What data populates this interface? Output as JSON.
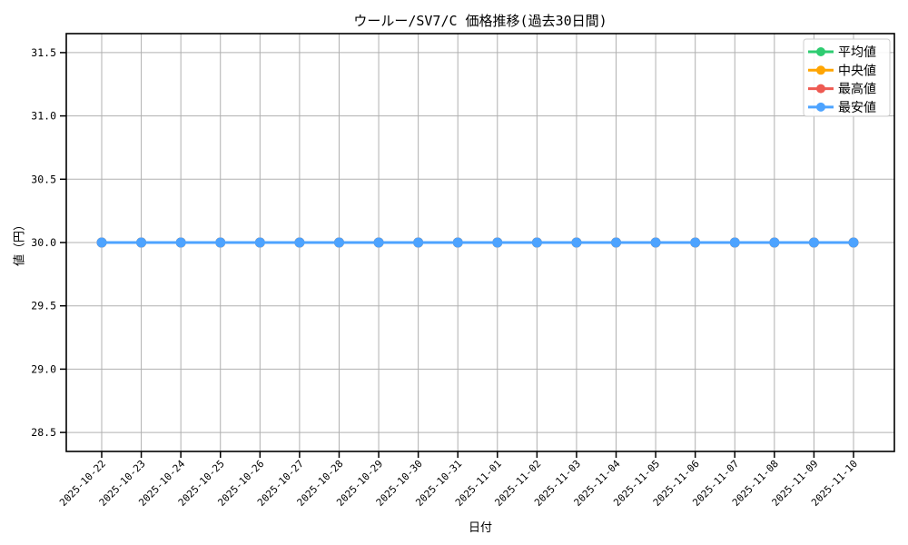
{
  "chart_data": {
    "type": "line",
    "title": "ウールー/SV7/C 価格推移(過去30日間)",
    "xlabel": "日付",
    "ylabel": "値（円）",
    "categories": [
      "2025-10-22",
      "2025-10-23",
      "2025-10-24",
      "2025-10-25",
      "2025-10-26",
      "2025-10-27",
      "2025-10-28",
      "2025-10-29",
      "2025-10-30",
      "2025-10-31",
      "2025-11-01",
      "2025-11-02",
      "2025-11-03",
      "2025-11-04",
      "2025-11-05",
      "2025-11-06",
      "2025-11-07",
      "2025-11-08",
      "2025-11-09",
      "2025-11-10"
    ],
    "series": [
      {
        "name": "平均値",
        "color": "#2ecc71",
        "values": [
          30.0,
          30.0,
          30.0,
          30.0,
          30.0,
          30.0,
          30.0,
          30.0,
          30.0,
          30.0,
          30.0,
          30.0,
          30.0,
          30.0,
          30.0,
          30.0,
          30.0,
          30.0,
          30.0,
          30.0
        ]
      },
      {
        "name": "中央値",
        "color": "#ffa502",
        "values": [
          30.0,
          30.0,
          30.0,
          30.0,
          30.0,
          30.0,
          30.0,
          30.0,
          30.0,
          30.0,
          30.0,
          30.0,
          30.0,
          30.0,
          30.0,
          30.0,
          30.0,
          30.0,
          30.0,
          30.0
        ]
      },
      {
        "name": "最高値",
        "color": "#ee5a52",
        "values": [
          30.0,
          30.0,
          30.0,
          30.0,
          30.0,
          30.0,
          30.0,
          30.0,
          30.0,
          30.0,
          30.0,
          30.0,
          30.0,
          30.0,
          30.0,
          30.0,
          30.0,
          30.0,
          30.0,
          30.0
        ]
      },
      {
        "name": "最安値",
        "color": "#4da3ff",
        "values": [
          30.0,
          30.0,
          30.0,
          30.0,
          30.0,
          30.0,
          30.0,
          30.0,
          30.0,
          30.0,
          30.0,
          30.0,
          30.0,
          30.0,
          30.0,
          30.0,
          30.0,
          30.0,
          30.0,
          30.0
        ]
      }
    ],
    "yticks": [
      28.5,
      29.0,
      29.5,
      30.0,
      30.5,
      31.0,
      31.5
    ],
    "ylim": [
      28.35,
      31.65
    ],
    "grid": true,
    "grid_color": "#b0b0b0",
    "axis_color": "#000000",
    "legend": {
      "position": "upper right",
      "border_color": "#cccccc",
      "entries": [
        "平均値",
        "中央値",
        "最高値",
        "最安値"
      ]
    }
  }
}
